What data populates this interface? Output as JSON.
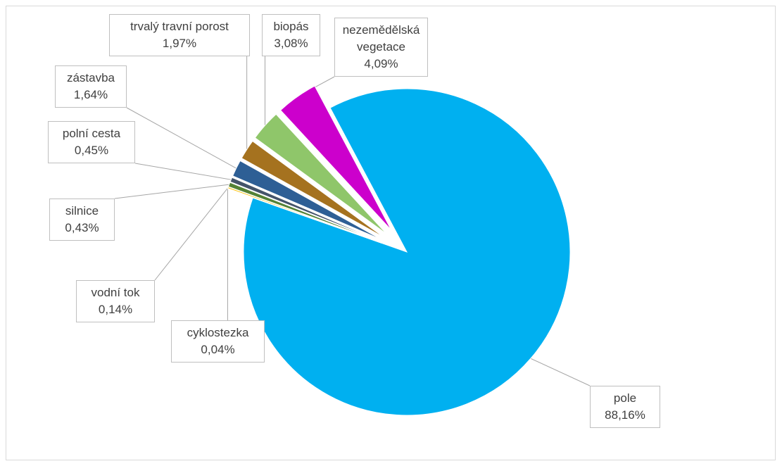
{
  "chart_data": {
    "type": "pie",
    "categories": [
      "pole",
      "cyklostezka",
      "vodní tok",
      "silnice",
      "polní cesta",
      "zástavba",
      "trvalý travní porost",
      "biopás",
      "nezemědělská vegetace"
    ],
    "values": [
      88.16,
      0.04,
      0.14,
      0.43,
      0.45,
      1.64,
      1.97,
      3.08,
      4.09
    ],
    "value_labels": [
      "88,16%",
      "0,04%",
      "0,14%",
      "0,43%",
      "0,45%",
      "1,64%",
      "1,97%",
      "3,08%",
      "4,09%"
    ],
    "colors": [
      "#00b0f0",
      "#a9d18e",
      "#ffc000",
      "#548235",
      "#44546a",
      "#2e5f95",
      "#a5721f",
      "#8fc66a",
      "#cc00cc"
    ]
  }
}
